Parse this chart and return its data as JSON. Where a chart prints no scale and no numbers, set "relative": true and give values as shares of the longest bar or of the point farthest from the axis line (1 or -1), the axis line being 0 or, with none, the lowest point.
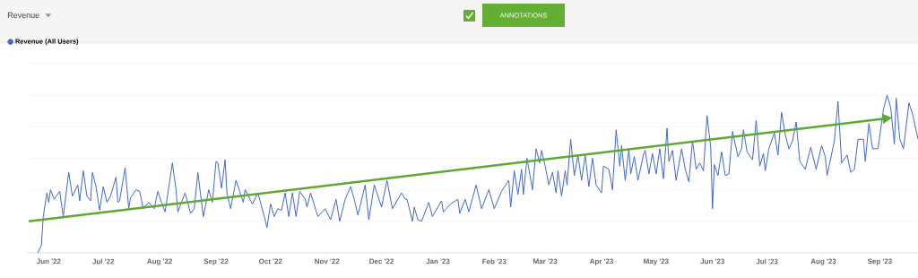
{
  "chart_data": {
    "type": "line",
    "title": "Revenue",
    "annotations": [
      "ANNOTATIONS"
    ],
    "relative": true,
    "grid": "y",
    "legend": "top left",
    "xlim": [
      "2022-05-20",
      "2023-09-22"
    ],
    "xticks": [
      {
        "value": "2022-06-01",
        "label": "Jun '22"
      },
      {
        "value": "2022-07-01",
        "label": "Jul '22"
      },
      {
        "value": "2022-08-01",
        "label": "Aug '22"
      },
      {
        "value": "2022-09-01",
        "label": "Sep '22"
      },
      {
        "value": "2022-10-01",
        "label": "Oct '22"
      },
      {
        "value": "2022-11-01",
        "label": "Nov '22"
      },
      {
        "value": "2022-12-01",
        "label": "Dec '22"
      },
      {
        "value": "2023-01-01",
        "label": "Jan '23"
      },
      {
        "value": "2023-02-01",
        "label": "Feb '23"
      },
      {
        "value": "2023-03-01",
        "label": "Mar '23"
      },
      {
        "value": "2023-04-01",
        "label": "Apr '23"
      },
      {
        "value": "2023-05-01",
        "label": "May '23"
      },
      {
        "value": "2023-06-01",
        "label": "Jun '23"
      },
      {
        "value": "2023-07-01",
        "label": "Jul '23"
      },
      {
        "value": "2023-08-01",
        "label": "Aug '23"
      },
      {
        "value": "2023-09-01",
        "label": "Sep '23"
      }
    ],
    "series": [
      {
        "name": "Revenue (All Users)",
        "color": "#4169cc",
        "x": [
          "2022-05-26",
          "2022-05-28",
          "2022-05-29",
          "2022-05-31",
          "2022-06-01",
          "2022-06-02",
          "2022-06-04",
          "2022-06-07",
          "2022-06-09",
          "2022-06-12",
          "2022-06-14",
          "2022-06-17",
          "2022-06-18",
          "2022-06-20",
          "2022-06-22",
          "2022-06-24",
          "2022-06-25",
          "2022-06-27",
          "2022-06-29",
          "2022-07-01",
          "2022-07-03",
          "2022-07-05",
          "2022-07-08",
          "2022-07-09",
          "2022-07-10",
          "2022-07-13",
          "2022-07-15",
          "2022-07-16",
          "2022-07-19",
          "2022-07-21",
          "2022-07-23",
          "2022-07-26",
          "2022-07-29",
          "2022-07-31",
          "2022-08-02",
          "2022-08-04",
          "2022-08-08",
          "2022-08-10",
          "2022-08-11",
          "2022-08-15",
          "2022-08-18",
          "2022-08-20",
          "2022-08-22",
          "2022-08-25",
          "2022-08-28",
          "2022-08-30",
          "2022-09-01",
          "2022-09-02",
          "2022-09-04",
          "2022-09-06",
          "2022-09-07",
          "2022-09-09",
          "2022-09-12",
          "2022-09-14",
          "2022-09-16",
          "2022-09-17",
          "2022-09-21",
          "2022-09-24",
          "2022-09-28",
          "2022-09-29",
          "2022-10-01",
          "2022-10-03",
          "2022-10-05",
          "2022-10-07",
          "2022-10-09",
          "2022-10-11",
          "2022-10-13",
          "2022-10-15",
          "2022-10-17",
          "2022-10-20",
          "2022-10-21",
          "2022-10-23",
          "2022-10-27",
          "2022-10-31",
          "2022-11-03",
          "2022-11-06",
          "2022-11-08",
          "2022-11-11",
          "2022-11-14",
          "2022-11-16",
          "2022-11-18",
          "2022-11-22",
          "2022-11-24",
          "2022-11-27",
          "2022-12-01",
          "2022-12-04",
          "2022-12-07",
          "2022-12-12",
          "2022-12-14",
          "2022-12-15",
          "2022-12-18",
          "2022-12-19",
          "2022-12-21",
          "2022-12-23",
          "2022-12-27",
          "2022-12-29",
          "2023-01-03",
          "2023-01-04",
          "2023-01-08",
          "2023-01-12",
          "2023-01-13",
          "2023-01-16",
          "2023-01-18",
          "2023-01-22",
          "2023-01-25",
          "2023-01-29",
          "2023-02-01",
          "2023-02-05",
          "2023-02-09",
          "2023-02-10",
          "2023-02-12",
          "2023-02-14",
          "2023-02-16",
          "2023-02-17",
          "2023-02-19",
          "2023-02-22",
          "2023-02-24",
          "2023-02-26",
          "2023-02-27",
          "2023-03-01",
          "2023-03-03",
          "2023-03-05",
          "2023-03-07",
          "2023-03-08",
          "2023-03-10",
          "2023-03-12",
          "2023-03-13",
          "2023-03-15",
          "2023-03-17",
          "2023-03-19",
          "2023-03-21",
          "2023-03-23",
          "2023-03-25",
          "2023-03-27",
          "2023-03-29",
          "2023-04-01",
          "2023-04-02",
          "2023-04-05",
          "2023-04-07",
          "2023-04-09",
          "2023-04-11",
          "2023-04-12",
          "2023-04-14",
          "2023-04-16",
          "2023-04-17",
          "2023-04-19",
          "2023-04-21",
          "2023-04-24",
          "2023-04-25",
          "2023-04-27",
          "2023-04-29",
          "2023-05-01",
          "2023-05-03",
          "2023-05-05",
          "2023-05-07",
          "2023-05-08",
          "2023-05-10",
          "2023-05-12",
          "2023-05-15",
          "2023-05-17",
          "2023-05-19",
          "2023-05-21",
          "2023-05-23",
          "2023-05-25",
          "2023-05-27",
          "2023-05-29",
          "2023-05-31",
          "2023-06-01",
          "2023-06-02",
          "2023-06-04",
          "2023-06-06",
          "2023-06-08",
          "2023-06-10",
          "2023-06-12",
          "2023-06-15",
          "2023-06-17",
          "2023-06-18",
          "2023-06-20",
          "2023-06-23",
          "2023-06-25",
          "2023-06-27",
          "2023-06-29",
          "2023-06-30",
          "2023-07-02",
          "2023-07-05",
          "2023-07-07",
          "2023-07-09",
          "2023-07-11",
          "2023-07-13",
          "2023-07-15",
          "2023-07-17",
          "2023-07-19",
          "2023-07-22",
          "2023-07-25",
          "2023-07-28",
          "2023-07-31",
          "2023-08-02",
          "2023-08-03",
          "2023-08-07",
          "2023-08-09",
          "2023-08-11",
          "2023-08-14",
          "2023-08-16",
          "2023-08-18",
          "2023-08-20",
          "2023-08-23",
          "2023-08-24",
          "2023-08-26",
          "2023-08-28",
          "2023-08-31",
          "2023-09-03",
          "2023-09-05",
          "2023-09-07",
          "2023-09-09",
          "2023-09-10",
          "2023-09-12",
          "2023-09-14",
          "2023-09-17",
          "2023-09-19",
          "2023-09-22"
        ],
        "values": [
          0,
          0.05,
          0.23,
          0.38,
          0.32,
          0.4,
          0.34,
          0.39,
          0.23,
          0.51,
          0.36,
          0.43,
          0.33,
          0.52,
          0.36,
          0.33,
          0.51,
          0.42,
          0.27,
          0.42,
          0.32,
          0.36,
          0.48,
          0.32,
          0.33,
          0.54,
          0.28,
          0.35,
          0.4,
          0.39,
          0.28,
          0.32,
          0.28,
          0.39,
          0.32,
          0.26,
          0.57,
          0.4,
          0.26,
          0.38,
          0.25,
          0.28,
          0.51,
          0.23,
          0.4,
          0.32,
          0.58,
          0.57,
          0.41,
          0.59,
          0.38,
          0.28,
          0.46,
          0.39,
          0.32,
          0.4,
          0.31,
          0.38,
          0.21,
          0.16,
          0.31,
          0.23,
          0.28,
          0.27,
          0.38,
          0.23,
          0.38,
          0.23,
          0.39,
          0.34,
          0.29,
          0.38,
          0.23,
          0.28,
          0.21,
          0.34,
          0.2,
          0.34,
          0.42,
          0.34,
          0.24,
          0.43,
          0.21,
          0.43,
          0.29,
          0.46,
          0.28,
          0.38,
          0.34,
          0.34,
          0.2,
          0.29,
          0.21,
          0.2,
          0.32,
          0.23,
          0.33,
          0.26,
          0.31,
          0.34,
          0.25,
          0.34,
          0.26,
          0.43,
          0.28,
          0.4,
          0.28,
          0.39,
          0.46,
          0.29,
          0.52,
          0.37,
          0.53,
          0.37,
          0.6,
          0.4,
          0.66,
          0.57,
          0.65,
          0.55,
          0.43,
          0.51,
          0.38,
          0.52,
          0.36,
          0.52,
          0.43,
          0.72,
          0.49,
          0.62,
          0.46,
          0.62,
          0.42,
          0.6,
          0.43,
          0.38,
          0.55,
          0.53,
          0.4,
          0.78,
          0.55,
          0.68,
          0.46,
          0.66,
          0.5,
          0.61,
          0.46,
          0.62,
          0.65,
          0.5,
          0.63,
          0.5,
          0.66,
          0.47,
          0.79,
          0.58,
          0.65,
          0.46,
          0.66,
          0.53,
          0.45,
          0.71,
          0.53,
          0.57,
          0.52,
          0.87,
          0.67,
          0.28,
          0.56,
          0.49,
          0.64,
          0.49,
          0.5,
          0.77,
          0.61,
          0.66,
          0.78,
          0.64,
          0.59,
          0.84,
          0.55,
          0.63,
          0.52,
          0.66,
          0.76,
          0.62,
          0.89,
          0.75,
          0.66,
          0.71,
          0.83,
          0.58,
          0.53,
          0.67,
          0.53,
          0.68,
          0.61,
          0.49,
          0.71,
          0.96,
          0.57,
          0.62,
          0.51,
          0.53,
          0.72,
          0.72,
          0.58,
          0.82,
          0.66,
          0.66,
          0.91,
          1,
          0.92,
          0.69,
          0.98,
          0.72,
          0.66,
          0.95,
          0.88,
          0.72
        ]
      },
      {
        "type": "line",
        "color": "#5fa833",
        "x": [
          "2022-05-21",
          "2023-09-03"
        ],
        "values": [
          0.2,
          0.85
        ]
      }
    ]
  }
}
